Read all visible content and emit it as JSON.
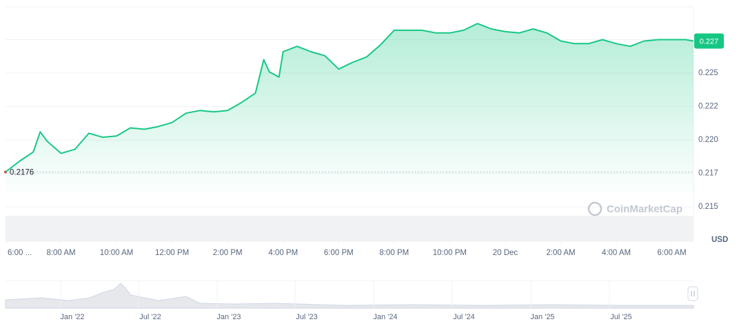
{
  "chart_data": {
    "type": "line",
    "x": [
      6.0,
      6.5,
      7.0,
      7.25,
      7.5,
      8.0,
      8.5,
      9.0,
      9.5,
      10.0,
      10.5,
      11.0,
      11.5,
      12.0,
      12.5,
      13.0,
      13.5,
      14.0,
      14.5,
      15.0,
      15.3,
      15.5,
      15.85,
      16.0,
      16.5,
      17.0,
      17.5,
      18.0,
      18.5,
      19.0,
      19.5,
      20.0,
      20.5,
      21.0,
      21.5,
      22.0,
      22.5,
      23.0,
      23.5,
      24.0,
      24.5,
      25.0,
      25.5,
      26.0,
      26.5,
      27.0,
      27.5,
      28.0,
      28.5,
      29.0,
      29.5,
      30.0,
      30.5,
      30.78
    ],
    "series": [
      {
        "color": "#16c784",
        "values": [
          0.2176,
          0.2184,
          0.2191,
          0.2206,
          0.2199,
          0.219,
          0.2193,
          0.2205,
          0.2202,
          0.2203,
          0.2209,
          0.2208,
          0.221,
          0.2213,
          0.222,
          0.2222,
          0.2221,
          0.2222,
          0.2228,
          0.2235,
          0.226,
          0.2251,
          0.2247,
          0.2266,
          0.227,
          0.2266,
          0.2263,
          0.2253,
          0.2258,
          0.2262,
          0.2271,
          0.2282,
          0.2282,
          0.2282,
          0.228,
          0.228,
          0.2282,
          0.2287,
          0.2283,
          0.2281,
          0.228,
          0.2283,
          0.228,
          0.2274,
          0.2272,
          0.2272,
          0.2275,
          0.2272,
          0.227,
          0.2274,
          0.2275,
          0.2275,
          0.2275,
          0.2274
        ]
      }
    ],
    "xlim": [
      6.0,
      30.78
    ],
    "xticks": [
      {
        "value": 6,
        "label": "6:00 ..."
      },
      {
        "value": 8,
        "label": "8:00 AM"
      },
      {
        "value": 10,
        "label": "10:00 AM"
      },
      {
        "value": 12,
        "label": "12:00 PM"
      },
      {
        "value": 14,
        "label": "2:00 PM"
      },
      {
        "value": 16,
        "label": "4:00 PM"
      },
      {
        "value": 18,
        "label": "6:00 PM"
      },
      {
        "value": 20,
        "label": "8:00 PM"
      },
      {
        "value": 22,
        "label": "10:00 PM"
      },
      {
        "value": 24,
        "label": "20 Dec"
      },
      {
        "value": 26,
        "label": "2:00 AM"
      },
      {
        "value": 28,
        "label": "4:00 AM"
      },
      {
        "value": 30,
        "label": "6:00 AM"
      }
    ],
    "ylim": [
      0.21242,
      0.22995
    ],
    "yticks": [
      0.215,
      {
        "value": 0.2175,
        "label": "0.217"
      },
      {
        "value": 0.22,
        "label": "0.220"
      },
      {
        "value": 0.2225,
        "label": "0.222"
      },
      0.225,
      {
        "value": 0.2275,
        "label": "0.227"
      }
    ],
    "y_unit": "USD",
    "grid": true,
    "open_price": {
      "value": 0.2176,
      "label": 0.2176,
      "color": "#ea3943"
    },
    "current_price": {
      "value": 0.2274,
      "label": "0.227"
    }
  },
  "watermark": "CoinMarketCap",
  "navigator": {
    "labels": [
      "Jan '22",
      "Jul '22",
      "Jan '23",
      "Jul '23",
      "Jan '24",
      "Jul '24",
      "Jan '25",
      "Jul '25"
    ]
  }
}
